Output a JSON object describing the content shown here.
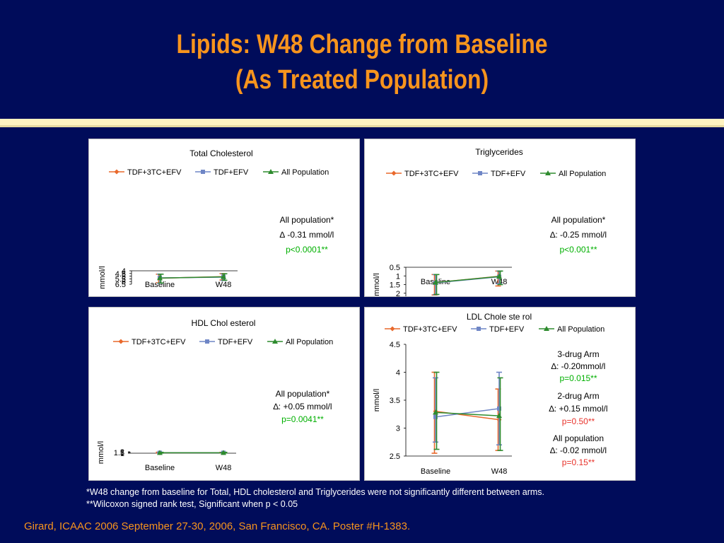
{
  "slide": {
    "title_line1": "Lipids: W48 Change from Baseline",
    "title_line2": "(As Treated Population)",
    "footnote1": "*W48 change from baseline for Total, HDL cholesterol and Triglycerides were not significantly different between arms.",
    "footnote2": "**Wilcoxon signed rank test, Significant when p < 0.05",
    "citation": "Girard, ICAAC 2006  September 27-30, 2006, San Francisco, CA. Poster #H-1383."
  },
  "colors": {
    "arm1": "#e9692c",
    "arm2": "#6f86c6",
    "all": "#2e8b2e",
    "green_text": "#00b000",
    "red_text": "#e8322a"
  },
  "chart_data": [
    {
      "id": "total",
      "type": "line",
      "title": "Total Cholesterol",
      "ylabel": "mmol/l",
      "ylim": [
        4,
        6.5
      ],
      "yticks": [
        "4",
        "4.5",
        "5",
        "5.5",
        "6",
        "6.5"
      ],
      "categories": [
        "Baseline",
        "W48"
      ],
      "series": [
        {
          "name": "TDF+3TC+EFV",
          "values": [
            5.38,
            5.08
          ],
          "err_low": [
            4.63,
            4.52
          ],
          "err_high": [
            6.25,
            5.72
          ]
        },
        {
          "name": "TDF+EFV",
          "values": [
            5.32,
            5.18
          ],
          "err_low": [
            4.62,
            4.58
          ],
          "err_high": [
            6.32,
            5.8
          ]
        },
        {
          "name": "All Population",
          "values": [
            5.35,
            5.12
          ],
          "err_low": [
            4.63,
            4.55
          ],
          "err_high": [
            6.28,
            5.76
          ]
        }
      ],
      "annotations": [
        {
          "text": "All population*",
          "color": "black"
        },
        {
          "text": "∆  -0.31 mmol/l",
          "color": "black"
        },
        {
          "text": "p<0.0001**",
          "color": "green"
        }
      ]
    },
    {
      "id": "trig",
      "type": "line",
      "title": "Triglycerides",
      "ylabel": "mmol/l",
      "ylim": [
        0.5,
        2.5
      ],
      "yticks": [
        "0.5",
        "1",
        "1.5",
        "2",
        "2.5"
      ],
      "categories": [
        "Baseline",
        "W48"
      ],
      "series": [
        {
          "name": "TDF+3TC+EFV",
          "values": [
            1.38,
            1.02
          ],
          "err_low": [
            0.92,
            0.72
          ],
          "err_high": [
            2.1,
            1.58
          ]
        },
        {
          "name": "TDF+EFV",
          "values": [
            1.4,
            1.05
          ],
          "err_low": [
            0.92,
            0.72
          ],
          "err_high": [
            2.08,
            1.45
          ]
        },
        {
          "name": "All Population",
          "values": [
            1.38,
            1.03
          ],
          "err_low": [
            0.92,
            0.72
          ],
          "err_high": [
            2.07,
            1.5
          ]
        }
      ],
      "annotations": [
        {
          "text": "All population*",
          "color": "black"
        },
        {
          "text": "∆: -0.25 mmol/l",
          "color": "black"
        },
        {
          "text": "p<0.001**",
          "color": "green"
        }
      ]
    },
    {
      "id": "hdl",
      "type": "line",
      "title": "HDL Chol esterol",
      "ylabel": "mmol/l",
      "ylim": [
        1,
        2
      ],
      "yticks": [
        "1",
        "1.5",
        "2"
      ],
      "categories": [
        "Baseline",
        "W48"
      ],
      "series": [
        {
          "name": "TDF+3TC+EFV",
          "values": [
            1.33,
            1.36
          ],
          "err_low": [
            1.09,
            1.13
          ],
          "err_high": [
            1.72,
            1.65
          ]
        },
        {
          "name": "TDF+EFV",
          "values": [
            1.31,
            1.33
          ],
          "err_low": [
            1.08,
            1.12
          ],
          "err_high": [
            1.65,
            1.65
          ]
        },
        {
          "name": "All Population",
          "values": [
            1.32,
            1.34
          ],
          "err_low": [
            1.08,
            1.14
          ],
          "err_high": [
            1.64,
            1.65
          ]
        }
      ],
      "annotations": [
        {
          "text": "All population*",
          "color": "black"
        },
        {
          "text": "∆: +0.05 mmol/l",
          "color": "black"
        },
        {
          "text": "p=0.0041**",
          "color": "green"
        }
      ]
    },
    {
      "id": "ldl",
      "type": "line",
      "title": "LDL Chole ste rol",
      "ylabel": "mmol/l",
      "ylim": [
        2.5,
        4.5
      ],
      "yticks": [
        "2.5",
        "3",
        "3.5",
        "4",
        "4.5"
      ],
      "categories": [
        "Baseline",
        "W48"
      ],
      "series": [
        {
          "name": "TDF+3TC+EFV",
          "values": [
            3.3,
            3.15
          ],
          "err_low": [
            2.55,
            2.6
          ],
          "err_high": [
            4.0,
            3.7
          ]
        },
        {
          "name": "TDF+EFV",
          "values": [
            3.2,
            3.35
          ],
          "err_low": [
            2.75,
            2.7
          ],
          "err_high": [
            3.9,
            4.0
          ]
        },
        {
          "name": "All Population",
          "values": [
            3.28,
            3.22
          ],
          "err_low": [
            2.62,
            2.6
          ],
          "err_high": [
            4.0,
            3.9
          ]
        }
      ],
      "annotations": [
        {
          "text": "3-drug Arm",
          "color": "black"
        },
        {
          "text": "∆: -0.20mmol/l",
          "color": "black"
        },
        {
          "text": "p=0.015**",
          "color": "green"
        },
        {
          "text": "2-drug Arm",
          "color": "black"
        },
        {
          "text": "∆: +0.15 mmol/l",
          "color": "black"
        },
        {
          "text": "p=0.50**",
          "color": "red"
        },
        {
          "text": "All population",
          "color": "black"
        },
        {
          "text": "∆: -0.02 mmol/l",
          "color": "black"
        },
        {
          "text": "p=0.15**",
          "color": "red"
        }
      ]
    }
  ]
}
